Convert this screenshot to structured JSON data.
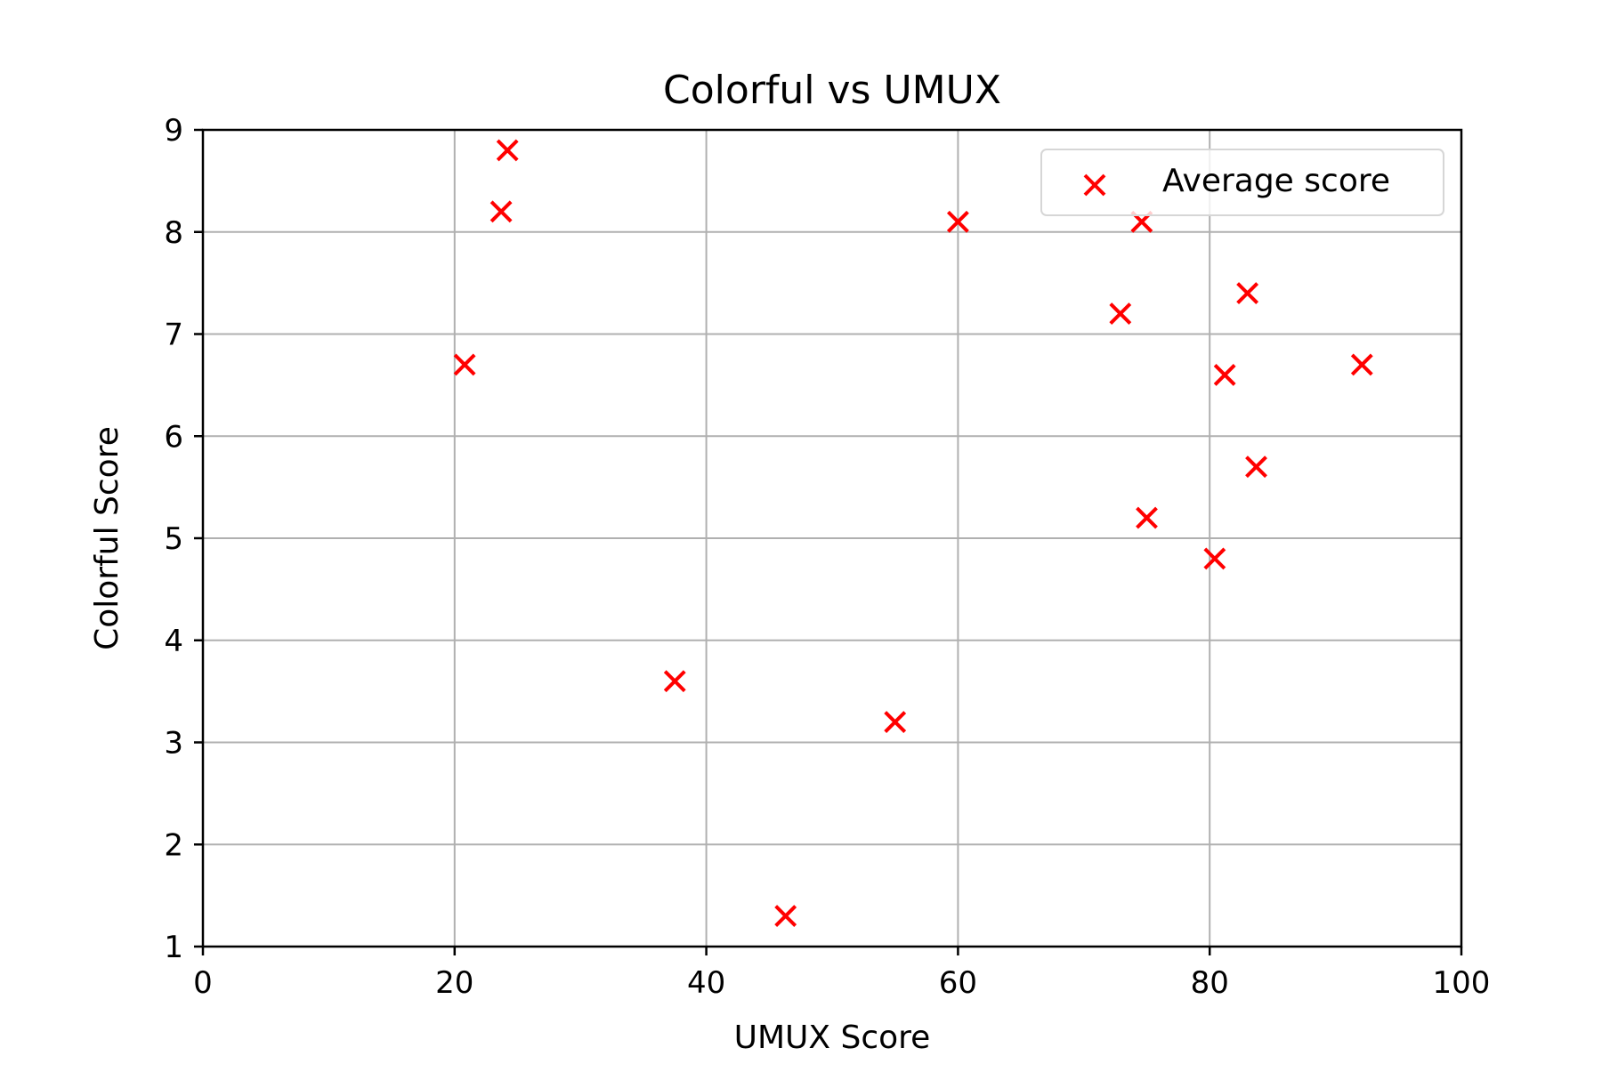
{
  "chart_data": {
    "type": "scatter",
    "title": "Colorful vs UMUX",
    "xlabel": "UMUX Score",
    "ylabel": "Colorful Score",
    "xlim": [
      0,
      100
    ],
    "ylim": [
      1,
      9
    ],
    "xticks": [
      0,
      20,
      40,
      60,
      80,
      100
    ],
    "yticks": [
      1,
      2,
      3,
      4,
      5,
      6,
      7,
      8,
      9
    ],
    "grid": true,
    "legend_position": "top-right",
    "marker": "x",
    "series": [
      {
        "name": "Average score",
        "color": "#ff0000",
        "points": [
          {
            "x": 20.8,
            "y": 6.7
          },
          {
            "x": 23.7,
            "y": 8.2
          },
          {
            "x": 24.2,
            "y": 8.8
          },
          {
            "x": 37.5,
            "y": 3.6
          },
          {
            "x": 46.3,
            "y": 1.3
          },
          {
            "x": 55.0,
            "y": 3.2
          },
          {
            "x": 60.0,
            "y": 8.1
          },
          {
            "x": 72.9,
            "y": 7.2
          },
          {
            "x": 74.6,
            "y": 8.1
          },
          {
            "x": 75.0,
            "y": 5.2
          },
          {
            "x": 80.4,
            "y": 4.8
          },
          {
            "x": 81.2,
            "y": 6.6
          },
          {
            "x": 83.0,
            "y": 7.4
          },
          {
            "x": 83.7,
            "y": 5.7
          },
          {
            "x": 92.1,
            "y": 6.7
          }
        ]
      }
    ]
  }
}
